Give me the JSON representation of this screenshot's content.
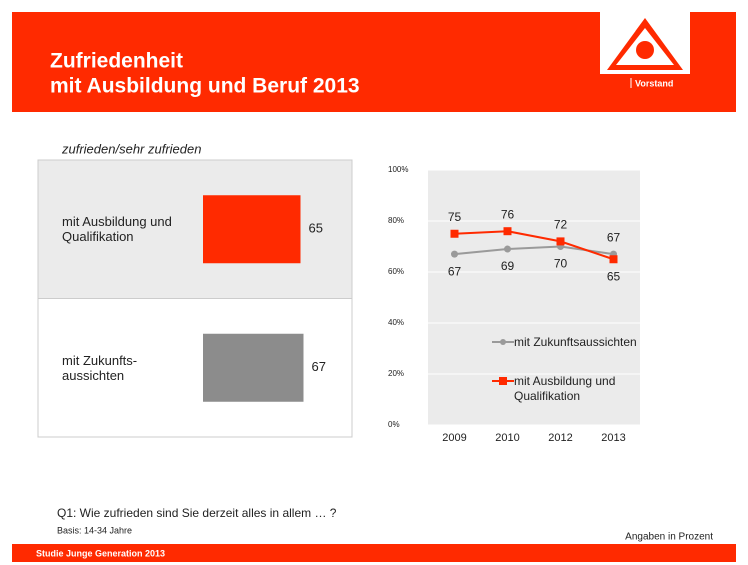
{
  "header": {
    "title_line1": "Zufriedenheit",
    "title_line2": "mit Ausbildung und Beruf 2013",
    "logo_text": "Vorstand"
  },
  "chart_data": [
    {
      "type": "bar",
      "subtitle": "zufrieden/sehr zufrieden",
      "categories": [
        "mit Ausbildung und Qualifikation",
        "mit Zukunfts-aussichten"
      ],
      "values": [
        65,
        67
      ],
      "colors": [
        "#ff2a00",
        "#8c8c8c"
      ],
      "xlim": [
        0,
        100
      ]
    },
    {
      "type": "line",
      "categories": [
        "2009",
        "2010",
        "2012",
        "2013"
      ],
      "series": [
        {
          "name": "mit Zukunftsaussichten",
          "color": "#9a9a9a",
          "values": [
            67,
            69,
            70,
            67
          ]
        },
        {
          "name": "mit Ausbildung und Qualifikation",
          "color": "#ff2a00",
          "values": [
            75,
            76,
            72,
            65
          ]
        }
      ],
      "ylim": [
        0,
        100
      ],
      "yticks": [
        {
          "value": 0,
          "label": "0%"
        },
        {
          "value": 20,
          "label": "20%"
        },
        {
          "value": 40,
          "label": "40%"
        },
        {
          "value": 60,
          "label": "60%"
        },
        {
          "value": 80,
          "label": "80%"
        },
        {
          "value": 100,
          "label": "100%"
        }
      ],
      "grid": true
    }
  ],
  "footer": {
    "question": "Q1: Wie zufrieden sind Sie derzeit alles in allem … ?",
    "basis": "Basis: 14-34 Jahre",
    "unit_note": "Angaben in Prozent",
    "study": "Studie Junge Generation 2013"
  }
}
